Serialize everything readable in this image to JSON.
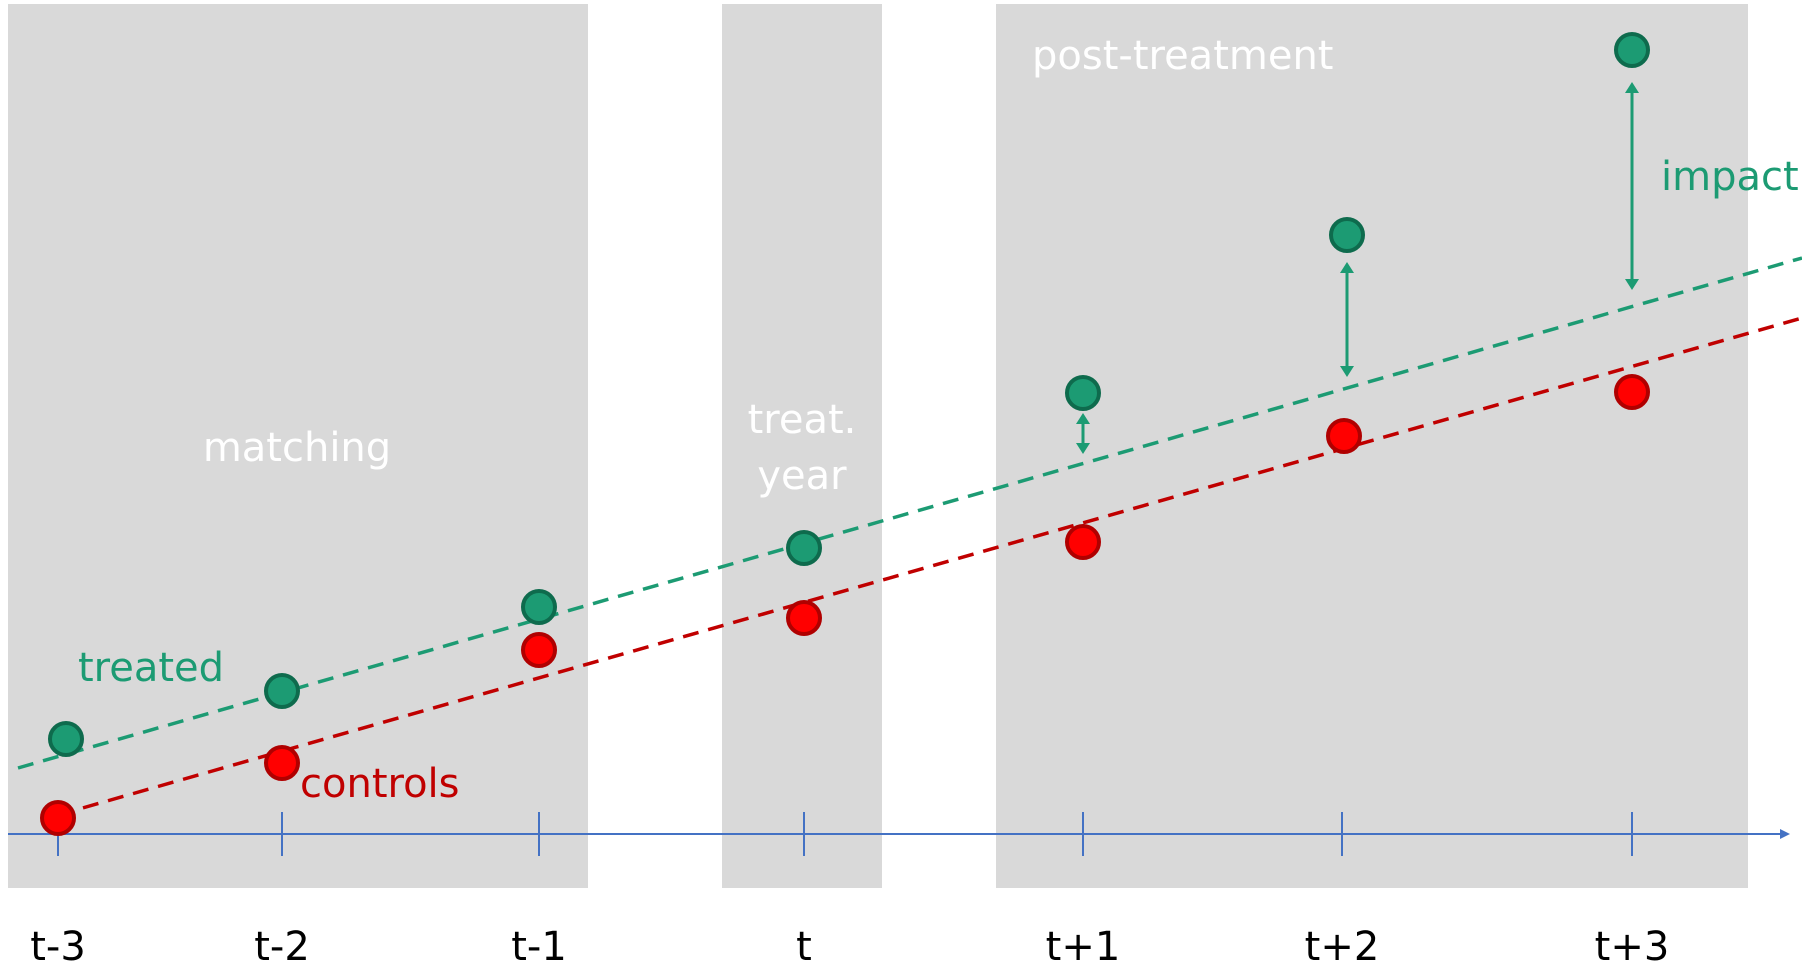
{
  "colors": {
    "treated": "#1c9b73",
    "treated_stroke": "#0e6b4d",
    "controls": "#ff0000",
    "controls_stroke": "#b00000",
    "controls_line": "#c00000",
    "controls_label": "#c00000",
    "axis": "#4472c4",
    "region": "#d9d9d9",
    "region_label": "#ffffff"
  },
  "regions": [
    {
      "id": "matching",
      "label_lines": [
        "matching"
      ]
    },
    {
      "id": "treat-year",
      "label_lines": [
        "treat.",
        "year"
      ]
    },
    {
      "id": "post-treatment",
      "label_lines": [
        "post-treatment"
      ]
    }
  ],
  "x_ticks": [
    "t-3",
    "t-2",
    "t-1",
    "t",
    "t+1",
    "t+2",
    "t+3"
  ],
  "series_labels": {
    "treated": "treated",
    "controls": "controls",
    "impact": "impact"
  },
  "chart_data": {
    "type": "scatter",
    "categories": [
      "t-3",
      "t-2",
      "t-1",
      "t",
      "t+1",
      "t+2",
      "t+3"
    ],
    "series": [
      {
        "name": "treated",
        "values": [
          1.05,
          1.55,
          2.6,
          3.1,
          4.3,
          6.2,
          8.0
        ]
      },
      {
        "name": "controls",
        "values": [
          0.18,
          0.82,
          2.1,
          2.4,
          3.15,
          4.1,
          4.4
        ]
      }
    ],
    "trendlines": [
      {
        "series": "treated",
        "style": "dashed"
      },
      {
        "series": "controls",
        "style": "dashed"
      }
    ],
    "impact_arrows": [
      "t+1",
      "t+2",
      "t+3"
    ]
  }
}
